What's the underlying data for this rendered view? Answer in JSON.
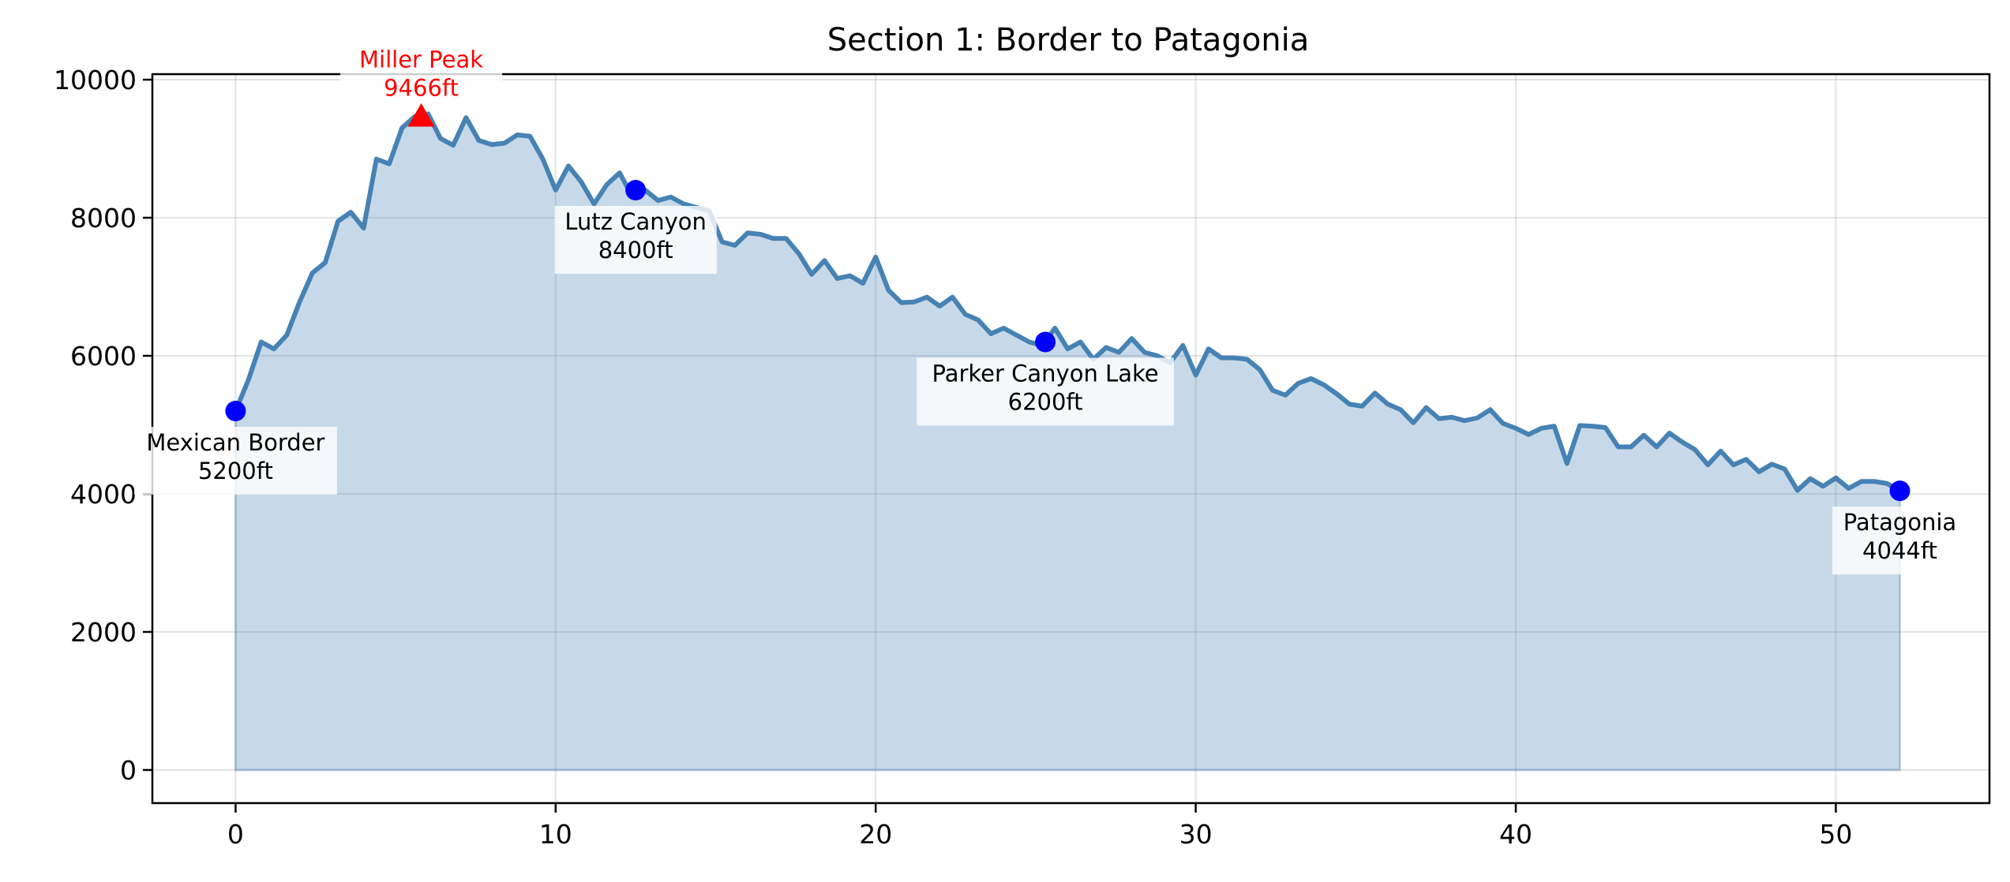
{
  "chart_data": {
    "type": "area",
    "title": "Section 1: Border to Patagonia",
    "xlabel": "",
    "ylabel": "",
    "xlim": [
      -2.6,
      54.8
    ],
    "ylim": [
      -480,
      10080
    ],
    "x_ticks": [
      0,
      10,
      20,
      30,
      40,
      50
    ],
    "y_ticks": [
      0,
      2000,
      4000,
      6000,
      8000,
      10000
    ],
    "grid": true,
    "line_color": "#4682b4",
    "fill_color": "#c6d8e8",
    "x": [
      0,
      0.4,
      0.8,
      1.2,
      1.6,
      2.0,
      2.4,
      2.8,
      3.2,
      3.6,
      4.0,
      4.4,
      4.8,
      5.2,
      5.6,
      6.0,
      6.4,
      6.8,
      7.2,
      7.6,
      8.0,
      8.4,
      8.8,
      9.2,
      9.6,
      10.0,
      10.4,
      10.8,
      11.2,
      11.6,
      12.0,
      12.4,
      12.8,
      13.2,
      13.6,
      14.0,
      14.4,
      14.8,
      15.2,
      15.6,
      16.0,
      16.4,
      16.8,
      17.2,
      17.6,
      18.0,
      18.4,
      18.8,
      19.2,
      19.6,
      20.0,
      20.4,
      20.8,
      21.2,
      21.6,
      22.0,
      22.4,
      22.8,
      23.2,
      23.6,
      24.0,
      24.4,
      24.8,
      25.2,
      25.6,
      26.0,
      26.4,
      26.8,
      27.2,
      27.6,
      28.0,
      28.4,
      28.8,
      29.2,
      29.6,
      30.0,
      30.4,
      30.8,
      31.2,
      31.6,
      32.0,
      32.4,
      32.8,
      33.2,
      33.6,
      34.0,
      34.4,
      34.8,
      35.2,
      35.6,
      36.0,
      36.4,
      36.8,
      37.2,
      37.6,
      38.0,
      38.4,
      38.8,
      39.2,
      39.6,
      40.0,
      40.4,
      40.8,
      41.2,
      41.6,
      42.0,
      42.4,
      42.8,
      43.2,
      43.6,
      44.0,
      44.4,
      44.8,
      45.2,
      45.6,
      46.0,
      46.4,
      46.8,
      47.2,
      47.6,
      48.0,
      48.4,
      48.8,
      49.2,
      49.6,
      50.0,
      50.4,
      50.8,
      51.2,
      51.6,
      52.0
    ],
    "y": [
      5200,
      5650,
      6200,
      6100,
      6300,
      6780,
      7200,
      7350,
      7950,
      8080,
      7850,
      8850,
      8780,
      9300,
      9466,
      9520,
      9150,
      9050,
      9450,
      9120,
      9060,
      9080,
      9200,
      9180,
      8850,
      8400,
      8750,
      8520,
      8200,
      8480,
      8650,
      8300,
      8400,
      8250,
      8300,
      8200,
      8150,
      8100,
      7650,
      7600,
      7780,
      7760,
      7700,
      7700,
      7480,
      7180,
      7380,
      7120,
      7160,
      7050,
      7430,
      6950,
      6770,
      6780,
      6850,
      6720,
      6850,
      6600,
      6520,
      6320,
      6400,
      6300,
      6200,
      6150,
      6400,
      6100,
      6200,
      5950,
      6120,
      6050,
      6250,
      6050,
      6000,
      5900,
      6150,
      5720,
      6100,
      5970,
      5970,
      5950,
      5800,
      5500,
      5430,
      5600,
      5670,
      5580,
      5450,
      5300,
      5270,
      5460,
      5300,
      5220,
      5030,
      5250,
      5090,
      5110,
      5060,
      5100,
      5220,
      5020,
      4950,
      4860,
      4950,
      4980,
      4440,
      4990,
      4980,
      4960,
      4680,
      4680,
      4850,
      4680,
      4880,
      4750,
      4640,
      4420,
      4620,
      4420,
      4500,
      4320,
      4430,
      4360,
      4050,
      4220,
      4110,
      4230,
      4080,
      4180,
      4180,
      4150,
      4044
    ],
    "landmarks": [
      {
        "name": "Mexican Border",
        "mile": 0,
        "elevation": 5200,
        "label": "5200ft",
        "marker": "circle",
        "color": "#0000ff",
        "label_position": "below"
      },
      {
        "name": "Miller Peak",
        "mile": 5.8,
        "elevation": 9466,
        "label": "9466ft",
        "marker": "triangle",
        "color": "#ff0000",
        "label_position": "above"
      },
      {
        "name": "Lutz Canyon",
        "mile": 12.5,
        "elevation": 8400,
        "label": "8400ft",
        "marker": "circle",
        "color": "#0000ff",
        "label_position": "below"
      },
      {
        "name": "Parker Canyon Lake",
        "mile": 25.3,
        "elevation": 6200,
        "label": "6200ft",
        "marker": "circle",
        "color": "#0000ff",
        "label_position": "below"
      },
      {
        "name": "Patagonia",
        "mile": 52,
        "elevation": 4044,
        "label": "4044ft",
        "marker": "circle",
        "color": "#0000ff",
        "label_position": "below"
      }
    ]
  }
}
